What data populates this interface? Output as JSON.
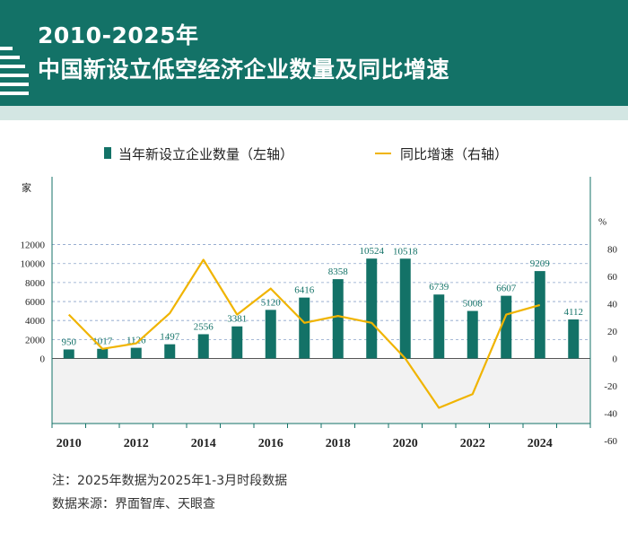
{
  "header": {
    "title_line1": "2010-2025年",
    "title_line2": "中国新设立低空经济企业数量及同比增速"
  },
  "legend": {
    "bar_label": "当年新设立企业数量（左轴）",
    "line_label": "同比增速（右轴）"
  },
  "chart_data": {
    "type": "bar",
    "categories": [
      "2010",
      "2011",
      "2012",
      "2013",
      "2014",
      "2015",
      "2016",
      "2017",
      "2018",
      "2019",
      "2020",
      "2021",
      "2022",
      "2023",
      "2024",
      "2025"
    ],
    "series": [
      {
        "name": "当年新设立企业数量（左轴）",
        "type": "bar",
        "axis": "left",
        "values": [
          950,
          1017,
          1126,
          1497,
          2556,
          3381,
          5120,
          6416,
          8358,
          10524,
          10518,
          6739,
          5008,
          6607,
          9209,
          4112
        ],
        "color": "#137267"
      },
      {
        "name": "同比增速（右轴）",
        "type": "line",
        "axis": "right",
        "values": [
          32,
          7,
          11,
          33,
          72,
          32,
          51,
          26,
          31,
          26,
          0,
          -36,
          -26,
          32,
          39,
          null
        ],
        "color": "#f0b400"
      }
    ],
    "left_axis": {
      "unit": "家",
      "ticks": [
        0,
        2000,
        4000,
        6000,
        8000,
        10000,
        12000
      ],
      "range": [
        -12000,
        14000
      ]
    },
    "right_axis": {
      "unit": "%",
      "ticks": [
        -60,
        -40,
        -20,
        0,
        20,
        40,
        60,
        80
      ],
      "range": [
        -60,
        120
      ]
    },
    "x_tick_labels": [
      "2010",
      "2012",
      "2014",
      "2016",
      "2018",
      "2020",
      "2022",
      "2024"
    ],
    "grid": "horizontal dashed"
  },
  "footnotes": {
    "note": "注：2025年数据为2025年1-3月时段数据",
    "source": "数据来源：界面智库、天眼查"
  }
}
